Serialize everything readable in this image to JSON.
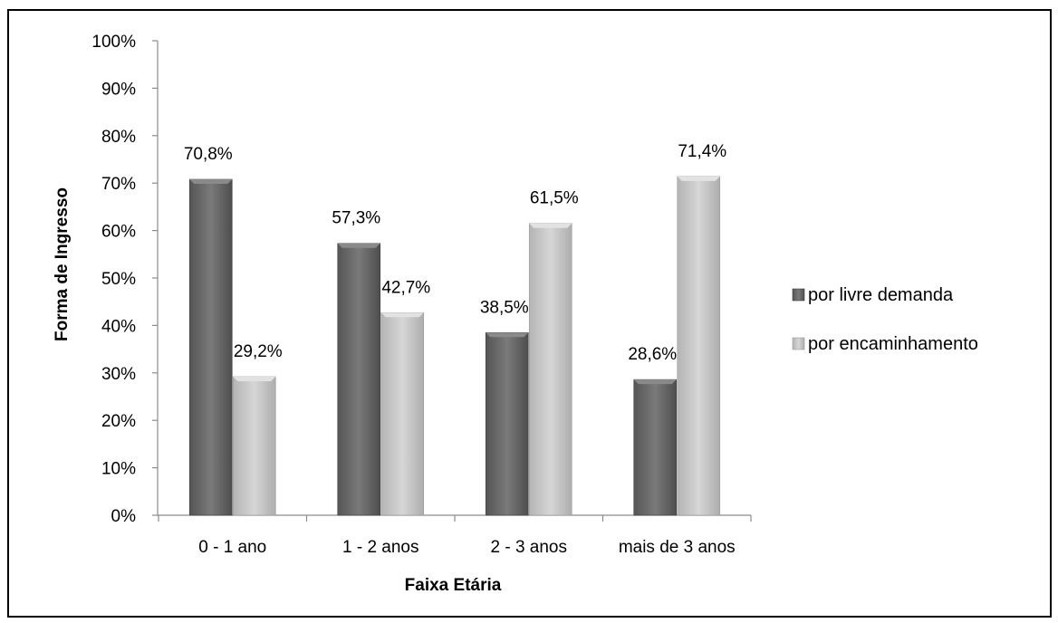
{
  "chart_data": {
    "type": "bar",
    "xlabel": "Faixa Etária",
    "ylabel": "Forma de Ingresso",
    "categories": [
      "0 - 1 ano",
      "1 - 2 anos",
      "2 - 3 anos",
      "mais de 3 anos"
    ],
    "series": [
      {
        "name": "por livre demanda",
        "values": [
          70.8,
          57.3,
          38.5,
          28.6
        ],
        "labels": [
          "70,8%",
          "57,3%",
          "38,5%",
          "28,6%"
        ],
        "color": "#6b6b6b"
      },
      {
        "name": "por encaminhamento",
        "values": [
          29.2,
          42.7,
          61.5,
          71.4
        ],
        "labels": [
          "29,2%",
          "42,7%",
          "61,5%",
          "71,4%"
        ],
        "color": "#c3c3c3"
      }
    ],
    "ylim": [
      0,
      100
    ],
    "yticks": [
      0,
      10,
      20,
      30,
      40,
      50,
      60,
      70,
      80,
      90,
      100
    ],
    "ytick_labels": [
      "0%",
      "10%",
      "20%",
      "30%",
      "40%",
      "50%",
      "60%",
      "70%",
      "80%",
      "90%",
      "100%"
    ],
    "grid": false,
    "legend_position": "right"
  }
}
